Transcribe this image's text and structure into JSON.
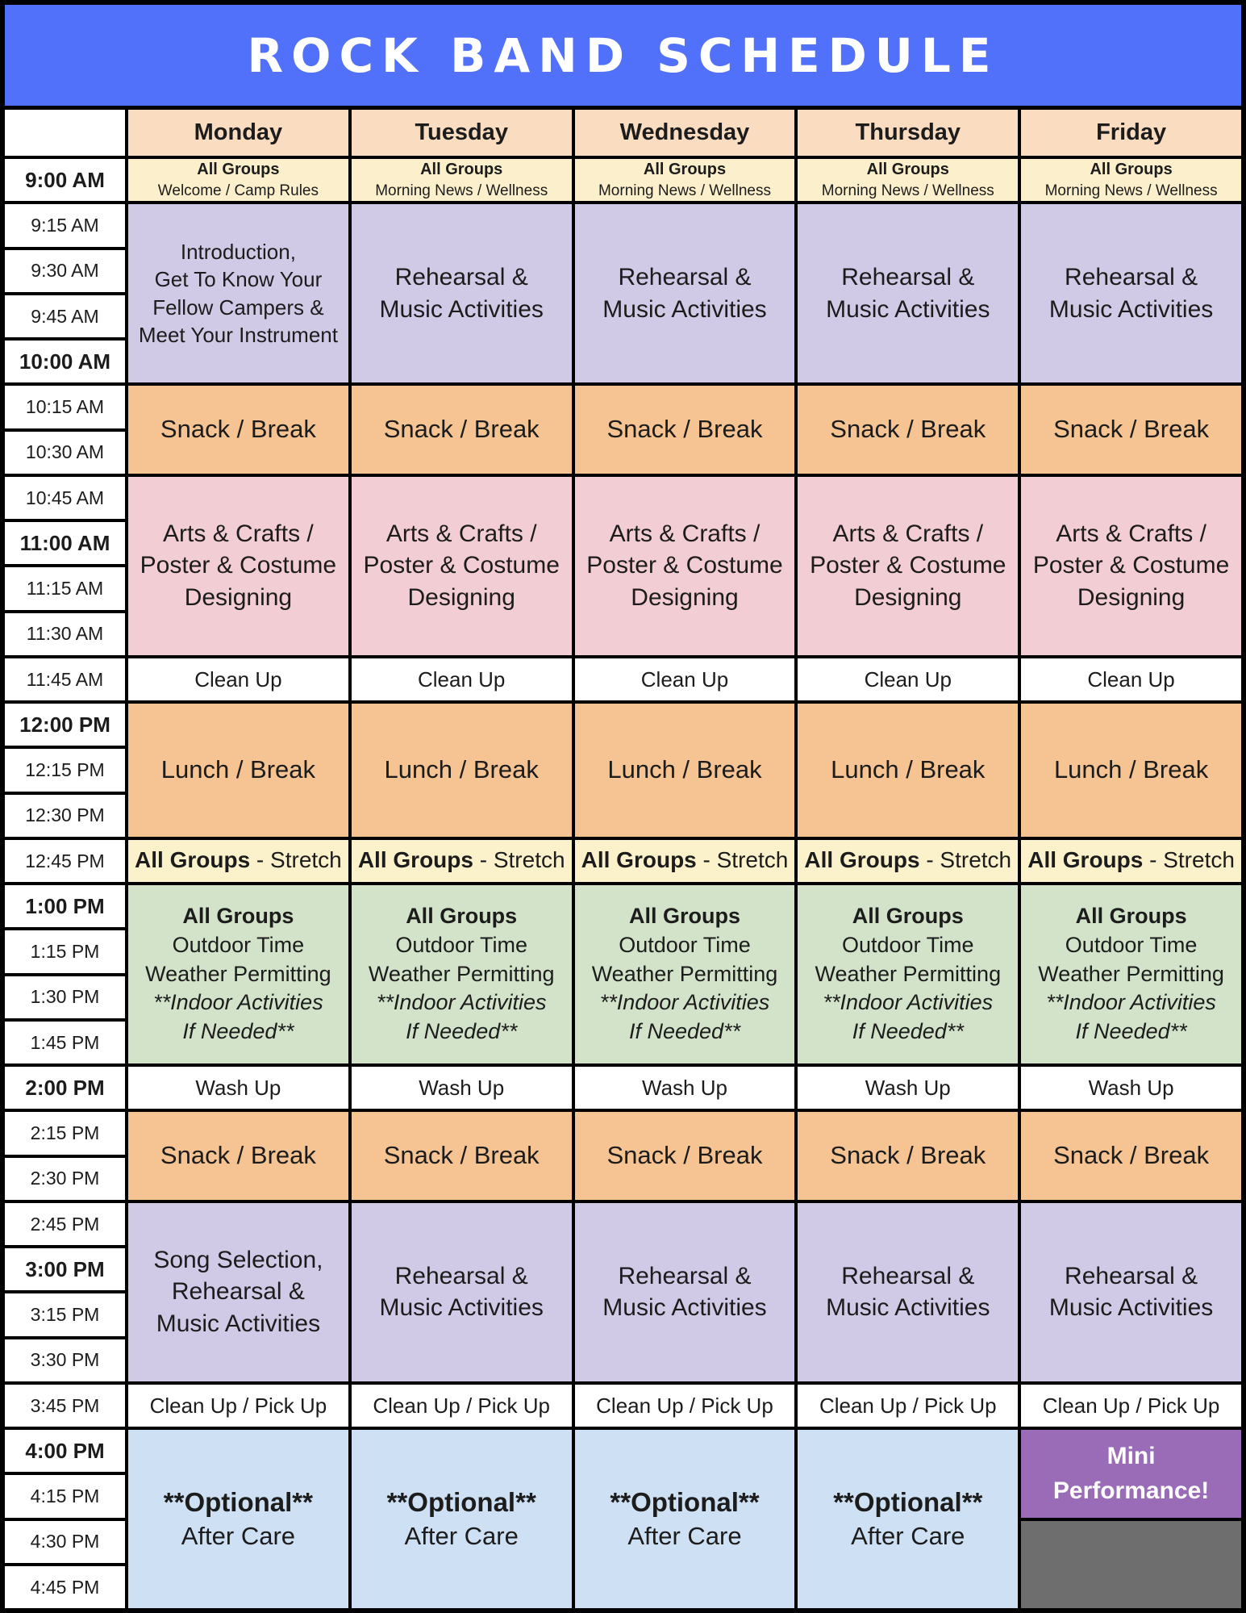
{
  "title": "ROCK BAND SCHEDULE",
  "days": [
    "Monday",
    "Tuesday",
    "Wednesday",
    "Thursday",
    "Friday"
  ],
  "times": [
    "9:00 AM",
    "9:15 AM",
    "9:30 AM",
    "9:45 AM",
    "10:00 AM",
    "10:15 AM",
    "10:30 AM",
    "10:45 AM",
    "11:00 AM",
    "11:15 AM",
    "11:30 AM",
    "11:45 AM",
    "12:00 PM",
    "12:15 PM",
    "12:30 PM",
    "12:45 PM",
    "1:00 PM",
    "1:15 PM",
    "1:30 PM",
    "1:45 PM",
    "2:00 PM",
    "2:15 PM",
    "2:30 PM",
    "2:45 PM",
    "3:00 PM",
    "3:15 PM",
    "3:30 PM",
    "3:45 PM",
    "4:00 PM",
    "4:15 PM",
    "4:30 PM",
    "4:45 PM"
  ],
  "cells": {
    "morning_meeting": {
      "heading": "All Groups",
      "monday": "Welcome / Camp Rules",
      "other_days": "Morning News / Wellness"
    },
    "monday_intro": [
      "Introduction,",
      "Get To Know Your",
      "Fellow Campers &",
      "Meet Your Instrument"
    ],
    "rehearsal": [
      "Rehearsal &",
      "Music Activities"
    ],
    "snack": "Snack / Break",
    "arts": [
      "Arts & Crafts /",
      "Poster & Costume",
      "Designing"
    ],
    "clean_up": "Clean Up",
    "lunch": "Lunch / Break",
    "stretch": {
      "bold": "All Groups",
      "rest": " - Stretch"
    },
    "outdoor": {
      "heading": "All Groups",
      "line1": "Outdoor Time",
      "line2": "Weather Permitting",
      "italic1": "**Indoor Activities",
      "italic2": "If Needed**"
    },
    "wash_up": "Wash Up",
    "monday_song": [
      "Song Selection,",
      "Rehearsal &",
      "Music Activities"
    ],
    "clean_up_pick_up": "Clean Up / Pick Up",
    "after_care": {
      "bold": "**Optional**",
      "line": "After Care"
    },
    "mini_performance": [
      "Mini",
      "Performance!"
    ]
  },
  "colors": {
    "banner_blue": "#5271FA",
    "header_peach": "#FADCC0",
    "morning_cream": "#FCF0CC",
    "rehearsal_lavender": "#D1CAE6",
    "break_orange": "#F6C492",
    "arts_pink": "#F3CDD4",
    "stretch_yellow": "#FBF2CC",
    "outdoor_green": "#D2E3CA",
    "after_care_blue": "#CEE0F3",
    "performance_purple": "#9A6BB7",
    "empty_gray": "#6E6E6E"
  }
}
